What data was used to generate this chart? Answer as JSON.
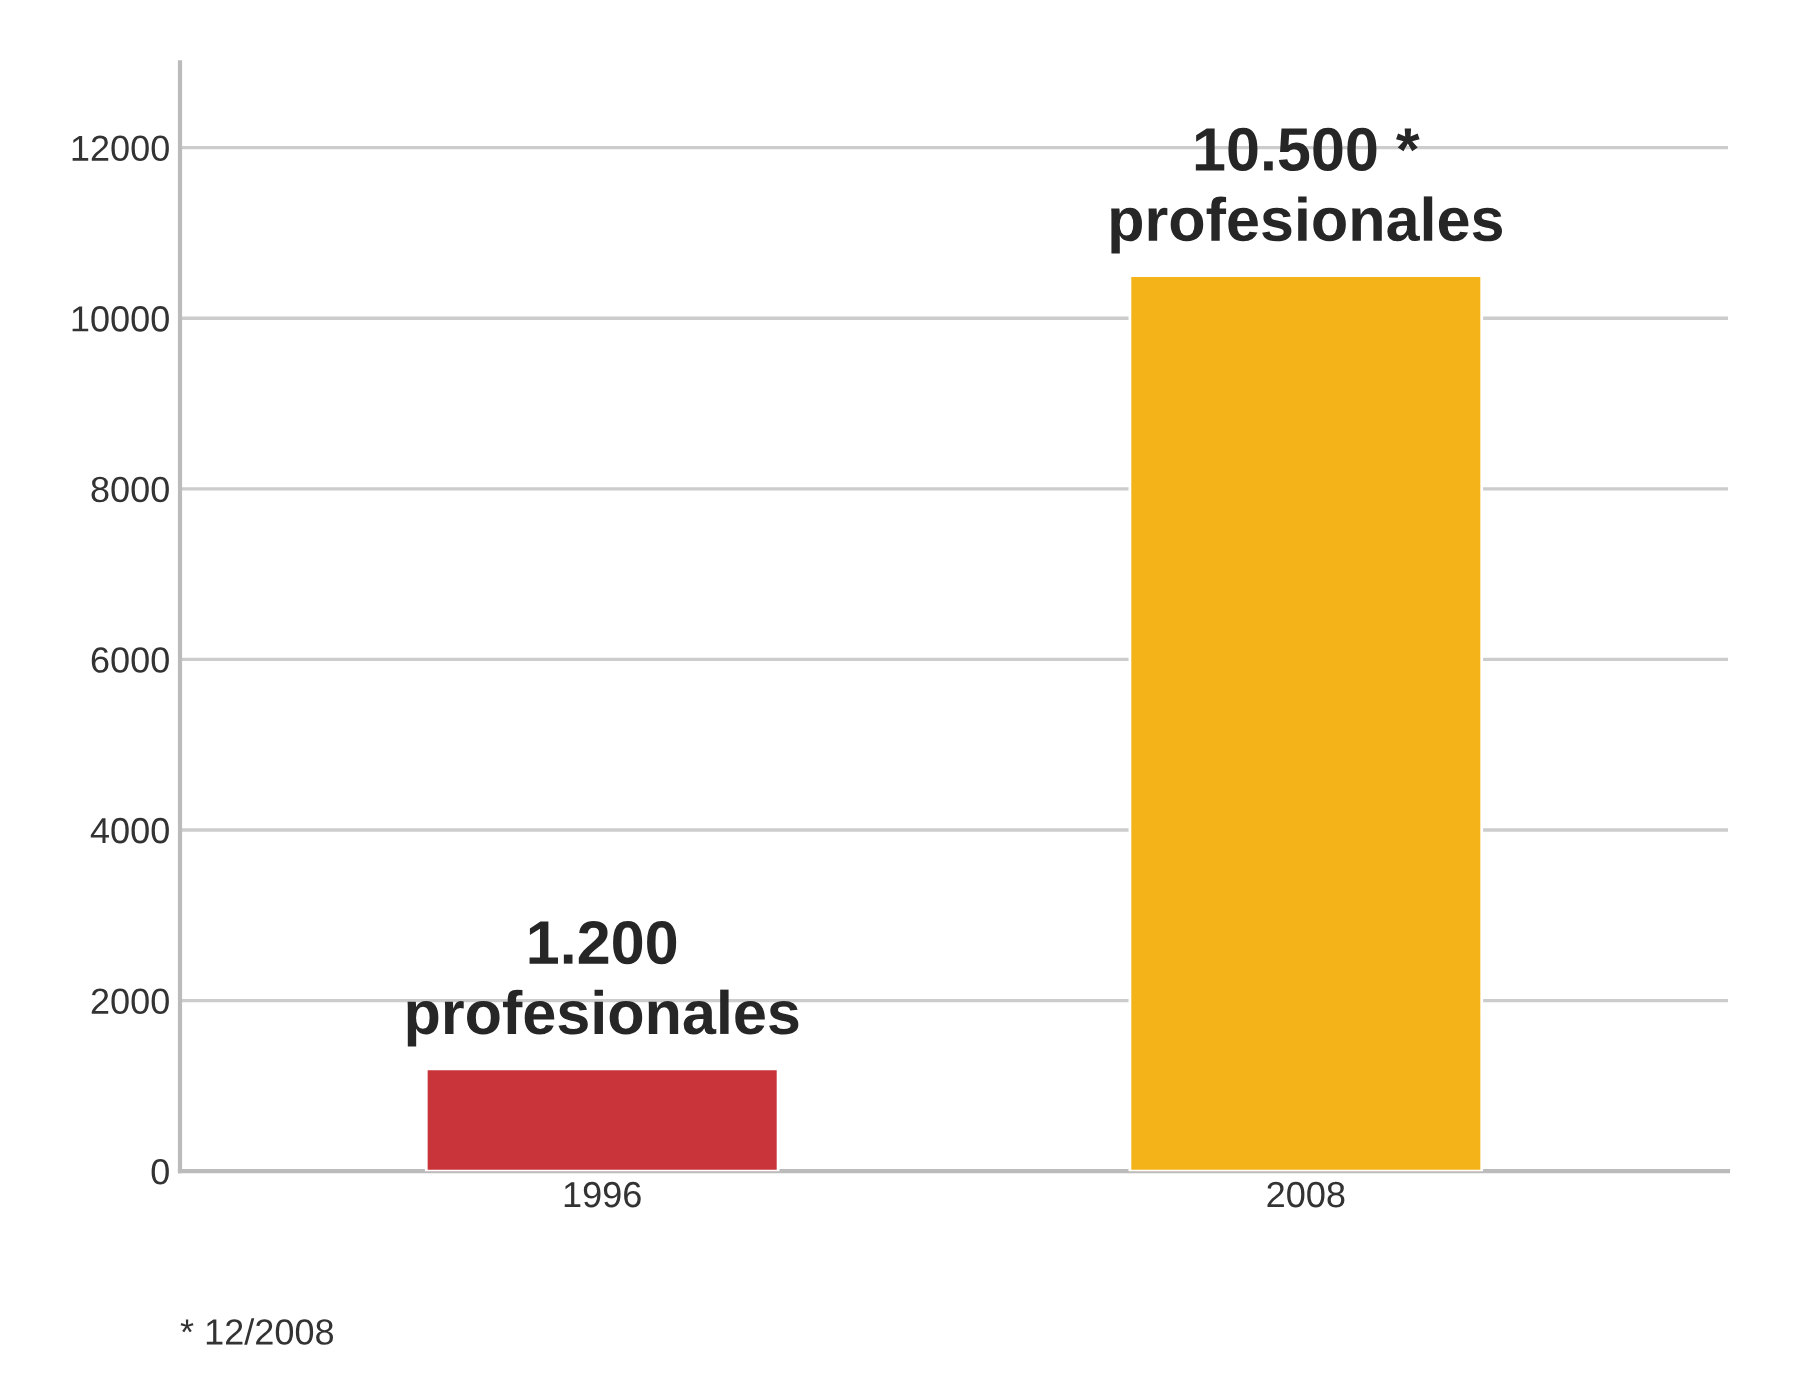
{
  "chart_data": {
    "type": "bar",
    "categories": [
      "1996",
      "2008"
    ],
    "values": [
      1200,
      10500
    ],
    "colors": [
      "#c8343a",
      "#f5b31a"
    ],
    "value_labels": [
      "1.200\nprofesionales",
      "10.500 *\nprofesionales"
    ],
    "ylim": [
      0,
      13000
    ],
    "yticks": [
      0,
      2000,
      4000,
      6000,
      8000,
      10000,
      12000
    ],
    "grid": "y",
    "annotations": [
      "* 12/2008"
    ]
  }
}
